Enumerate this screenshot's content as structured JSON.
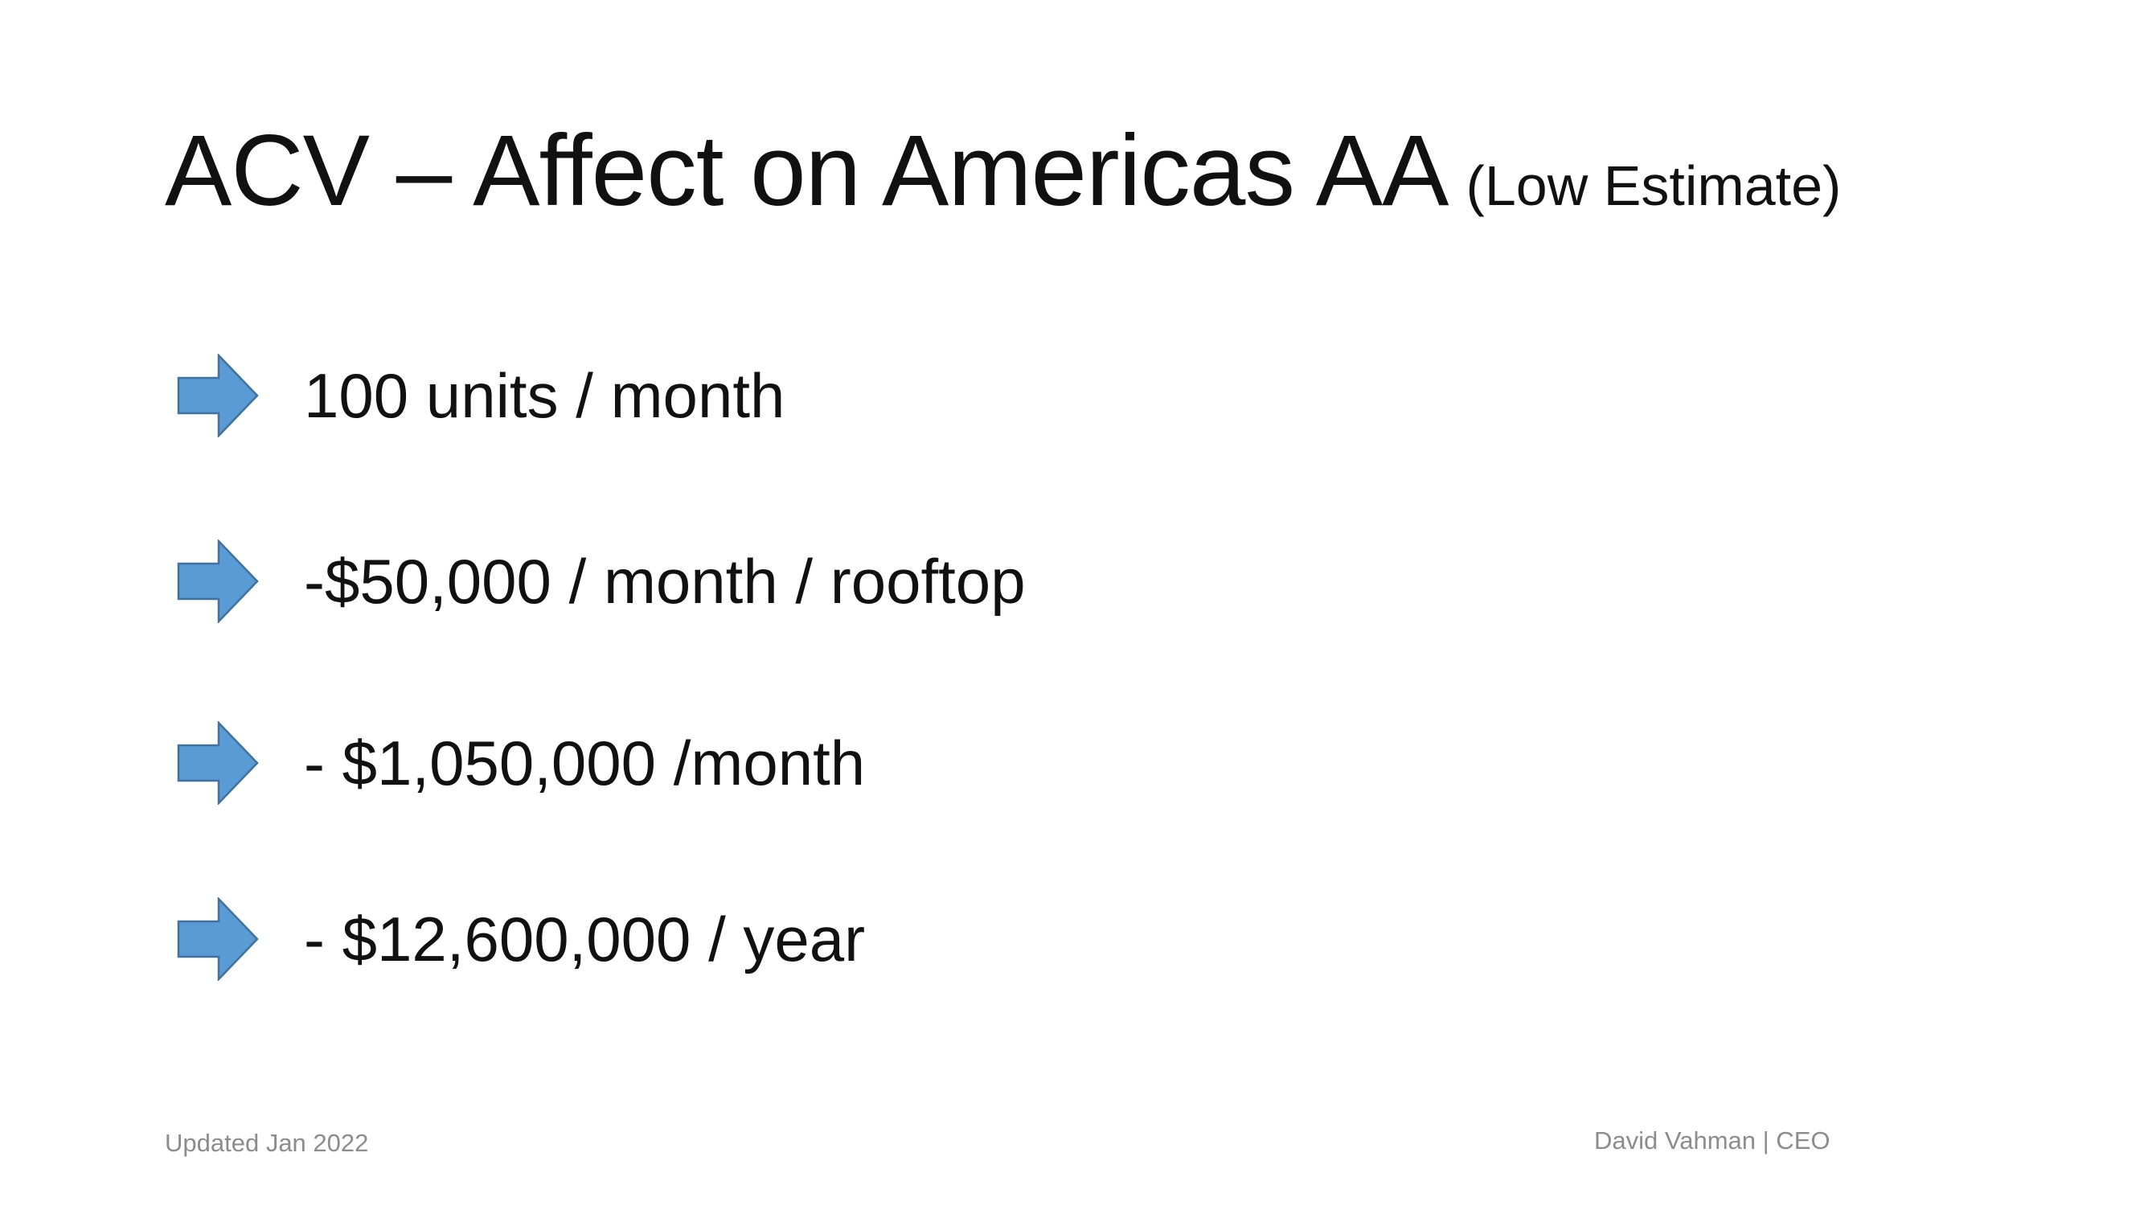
{
  "slide": {
    "title": "ACV – Affect on Americas AA",
    "title_suffix": "(Low Estimate)",
    "bullets": [
      {
        "icon": "right-arrow-icon",
        "text": "100 units / month"
      },
      {
        "icon": "right-arrow-icon",
        "text": "-$50,000 / month / rooftop"
      },
      {
        "icon": "right-arrow-icon",
        "text": "- $1,050,000 /month"
      },
      {
        "icon": "right-arrow-icon",
        "text": "- $12,600,000 / year"
      }
    ],
    "footer": {
      "updated": "Updated Jan 2022",
      "author": "David Vahman | CEO"
    }
  },
  "colors": {
    "arrow_fill": "#5B9BD5",
    "arrow_stroke": "#41719C",
    "text": "#111111",
    "footer_text": "#8C8C8C",
    "background": "#FFFFFF"
  }
}
